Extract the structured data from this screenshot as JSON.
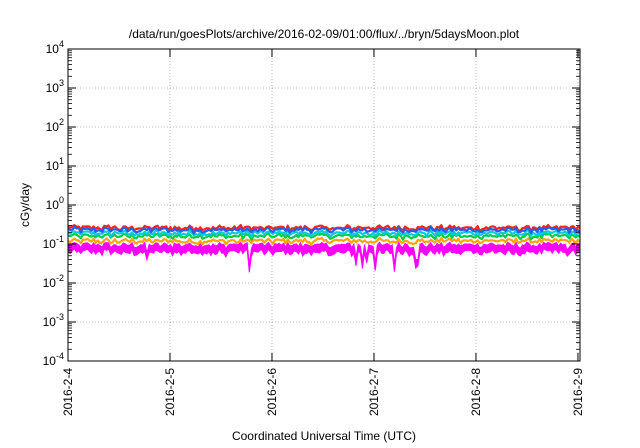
{
  "chart_data": {
    "type": "area",
    "title": "/data/run/goesPlots/archive/2016-02-09/01:00/flux/../bryn/5daysMoon.plot",
    "xlabel": "Coordinated Universal Time (UTC)",
    "ylabel": "cGy/day",
    "y_scale": "log",
    "ylim": [
      0.0001,
      10000
    ],
    "y_ticks": [
      {
        "value": 0.0001,
        "base": "10",
        "exp": "-4"
      },
      {
        "value": 0.001,
        "base": "10",
        "exp": "-3"
      },
      {
        "value": 0.01,
        "base": "10",
        "exp": "-2"
      },
      {
        "value": 0.1,
        "base": "10",
        "exp": "-1"
      },
      {
        "value": 1,
        "base": "10",
        "exp": "0"
      },
      {
        "value": 10,
        "base": "10",
        "exp": "1"
      },
      {
        "value": 100,
        "base": "10",
        "exp": "2"
      },
      {
        "value": 1000,
        "base": "10",
        "exp": "3"
      },
      {
        "value": 10000,
        "base": "10",
        "exp": "4"
      }
    ],
    "x_domain_days": [
      0,
      5.02
    ],
    "x_ticks": [
      {
        "day": 0,
        "label": "2016-2-4"
      },
      {
        "day": 1,
        "label": "2016-2-5"
      },
      {
        "day": 2,
        "label": "2016-2-6"
      },
      {
        "day": 3,
        "label": "2016-2-7"
      },
      {
        "day": 4,
        "label": "2016-2-8"
      },
      {
        "day": 5,
        "label": "2016-2-9"
      }
    ],
    "grid": true,
    "series": [
      {
        "color": "#ff00ff",
        "fill": true,
        "base_value": 0.095,
        "dips": [
          {
            "day": 0.78,
            "value": 0.06
          },
          {
            "day": 1.78,
            "value": 0.03
          },
          {
            "day": 2.82,
            "value": 0.045
          },
          {
            "day": 2.88,
            "value": 0.04
          },
          {
            "day": 2.92,
            "value": 0.05
          },
          {
            "day": 3.02,
            "value": 0.035
          },
          {
            "day": 3.2,
            "value": 0.03
          },
          {
            "day": 3.42,
            "value": 0.04
          },
          {
            "day": 4.9,
            "value": 0.07
          }
        ]
      },
      {
        "color": "#ffa500",
        "fill": false,
        "base_value": 0.12,
        "dips": []
      },
      {
        "color": "#00cc44",
        "fill": false,
        "base_value": 0.16,
        "dips": []
      },
      {
        "color": "#00ccdd",
        "fill": false,
        "base_value": 0.19,
        "dips": []
      },
      {
        "color": "#ff2020",
        "fill": false,
        "base_value": 0.26,
        "dips": []
      },
      {
        "color": "#2060ee",
        "fill": false,
        "base_value": 0.23,
        "dips": []
      }
    ]
  }
}
